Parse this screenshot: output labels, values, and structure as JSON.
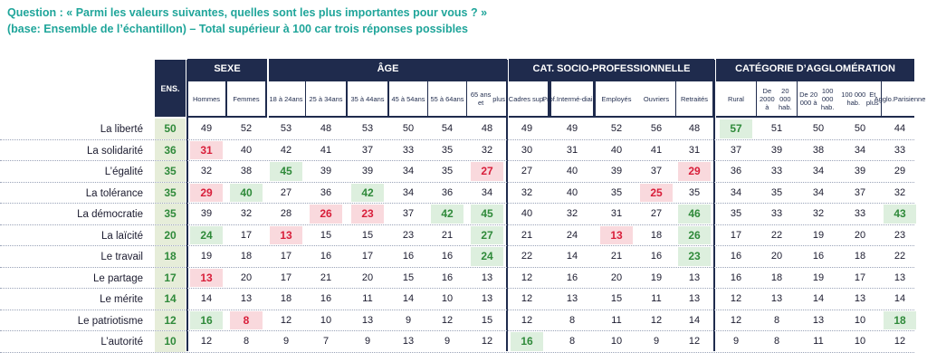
{
  "question": {
    "line1": "Question : « Parmi les valeurs suivantes, quelles sont les plus importantes pour vous ? »",
    "line2": "(base: Ensemble de l’échantillon) – Total supérieur à 100 car trois réponses possibles"
  },
  "header": {
    "ens": "ENS.",
    "groups": [
      "SEXE",
      "ÂGE",
      "CAT. SOCIO-PROFESSIONNELLE",
      "CATÉGORIE D’AGGLOMÉRATION"
    ],
    "columns": [
      [
        "Hommes"
      ],
      [
        "Femmes"
      ],
      [
        "18 à 24",
        "ans"
      ],
      [
        "25 à 34",
        "ans"
      ],
      [
        "35 à 44",
        "ans"
      ],
      [
        "45 à 54",
        "ans"
      ],
      [
        "55 à 64",
        "ans"
      ],
      [
        "65 ans et",
        "plus"
      ],
      [
        "Cadres sup."
      ],
      [
        "Prof.",
        "Intermé-",
        "diaires"
      ],
      [
        "Employés"
      ],
      [
        "Ouvriers"
      ],
      [
        "Retraités"
      ],
      [
        "Rural"
      ],
      [
        "De 2000 à",
        "20 000 hab."
      ],
      [
        "De 20 000 à",
        "100 000 hab."
      ],
      [
        "100 000 hab.",
        "Et plus"
      ],
      [
        "Agglo.",
        "Parisienne"
      ]
    ]
  },
  "rows": [
    {
      "label": "La liberté",
      "ens": "50",
      "values": [
        "49",
        "52",
        "53",
        "48",
        "53",
        "50",
        "54",
        "48",
        "49",
        "49",
        "52",
        "56",
        "48",
        "57",
        "51",
        "50",
        "50",
        "44"
      ],
      "hl": [
        "",
        "",
        "",
        "",
        "",
        "",
        "",
        "",
        "",
        "",
        "",
        "",
        "",
        "h",
        "",
        "",
        "",
        ""
      ]
    },
    {
      "label": "La solidarité",
      "ens": "36",
      "values": [
        "31",
        "40",
        "42",
        "41",
        "37",
        "33",
        "35",
        "32",
        "30",
        "31",
        "40",
        "41",
        "31",
        "37",
        "39",
        "38",
        "34",
        "33"
      ],
      "hl": [
        "l",
        "",
        "",
        "",
        "",
        "",
        "",
        "",
        "",
        "",
        "",
        "",
        "",
        "",
        "",
        "",
        "",
        ""
      ]
    },
    {
      "label": "L’égalité",
      "ens": "35",
      "values": [
        "32",
        "38",
        "45",
        "39",
        "39",
        "34",
        "35",
        "27",
        "27",
        "40",
        "39",
        "37",
        "29",
        "36",
        "33",
        "34",
        "39",
        "29"
      ],
      "hl": [
        "",
        "",
        "h",
        "",
        "",
        "",
        "",
        "l",
        "",
        "",
        "",
        "",
        "l",
        "",
        "",
        "",
        "",
        ""
      ]
    },
    {
      "label": "La tolérance",
      "ens": "35",
      "values": [
        "29",
        "40",
        "27",
        "36",
        "42",
        "34",
        "36",
        "34",
        "32",
        "40",
        "35",
        "25",
        "35",
        "34",
        "35",
        "34",
        "37",
        "32"
      ],
      "hl": [
        "l",
        "h",
        "",
        "",
        "h",
        "",
        "",
        "",
        "",
        "",
        "",
        "l",
        "",
        "",
        "",
        "",
        "",
        ""
      ]
    },
    {
      "label": "La démocratie",
      "ens": "35",
      "values": [
        "39",
        "32",
        "28",
        "26",
        "23",
        "37",
        "42",
        "45",
        "40",
        "32",
        "31",
        "27",
        "46",
        "35",
        "33",
        "32",
        "33",
        "43"
      ],
      "hl": [
        "",
        "",
        "",
        "l",
        "l",
        "",
        "h",
        "h",
        "",
        "",
        "",
        "",
        "h",
        "",
        "",
        "",
        "",
        "h"
      ]
    },
    {
      "label": "La laïcité",
      "ens": "20",
      "values": [
        "24",
        "17",
        "13",
        "15",
        "15",
        "23",
        "21",
        "27",
        "21",
        "24",
        "13",
        "18",
        "26",
        "17",
        "22",
        "19",
        "20",
        "23"
      ],
      "hl": [
        "h",
        "",
        "l",
        "",
        "",
        "",
        "",
        "h",
        "",
        "",
        "l",
        "",
        "h",
        "",
        "",
        "",
        "",
        ""
      ]
    },
    {
      "label": "Le travail",
      "ens": "18",
      "values": [
        "19",
        "18",
        "17",
        "16",
        "17",
        "16",
        "16",
        "24",
        "22",
        "14",
        "21",
        "16",
        "23",
        "16",
        "20",
        "16",
        "18",
        "22"
      ],
      "hl": [
        "",
        "",
        "",
        "",
        "",
        "",
        "",
        "h",
        "",
        "",
        "",
        "",
        "h",
        "",
        "",
        "",
        "",
        ""
      ]
    },
    {
      "label": "Le partage",
      "ens": "17",
      "values": [
        "13",
        "20",
        "17",
        "21",
        "20",
        "15",
        "16",
        "13",
        "12",
        "16",
        "20",
        "19",
        "13",
        "16",
        "18",
        "19",
        "17",
        "13"
      ],
      "hl": [
        "l",
        "",
        "",
        "",
        "",
        "",
        "",
        "",
        "",
        "",
        "",
        "",
        "",
        "",
        "",
        "",
        "",
        ""
      ]
    },
    {
      "label": "Le mérite",
      "ens": "14",
      "values": [
        "14",
        "13",
        "18",
        "16",
        "11",
        "14",
        "10",
        "13",
        "12",
        "13",
        "15",
        "11",
        "13",
        "12",
        "13",
        "14",
        "13",
        "14"
      ],
      "hl": [
        "",
        "",
        "",
        "",
        "",
        "",
        "",
        "",
        "",
        "",
        "",
        "",
        "",
        "",
        "",
        "",
        "",
        ""
      ]
    },
    {
      "label": "Le patriotisme",
      "ens": "12",
      "values": [
        "16",
        "8",
        "12",
        "10",
        "13",
        "9",
        "12",
        "15",
        "12",
        "8",
        "11",
        "12",
        "14",
        "12",
        "8",
        "13",
        "10",
        "18"
      ],
      "hl": [
        "h",
        "l",
        "",
        "",
        "",
        "",
        "",
        "",
        "",
        "",
        "",
        "",
        "",
        "",
        "",
        "",
        "",
        "h"
      ]
    },
    {
      "label": "L’autorité",
      "ens": "10",
      "values": [
        "12",
        "8",
        "9",
        "7",
        "9",
        "13",
        "9",
        "12",
        "16",
        "8",
        "10",
        "9",
        "12",
        "9",
        "8",
        "11",
        "10",
        "12"
      ],
      "hl": [
        "",
        "",
        "",
        "",
        "",
        "",
        "",
        "",
        "h",
        "",
        "",
        "",
        "",
        "",
        "",
        "",
        "",
        ""
      ]
    }
  ],
  "colors": {
    "navy": "#1f2b4d",
    "teal": "#1fa59a",
    "green": "#2f8a3a",
    "red": "#d81e3a"
  }
}
